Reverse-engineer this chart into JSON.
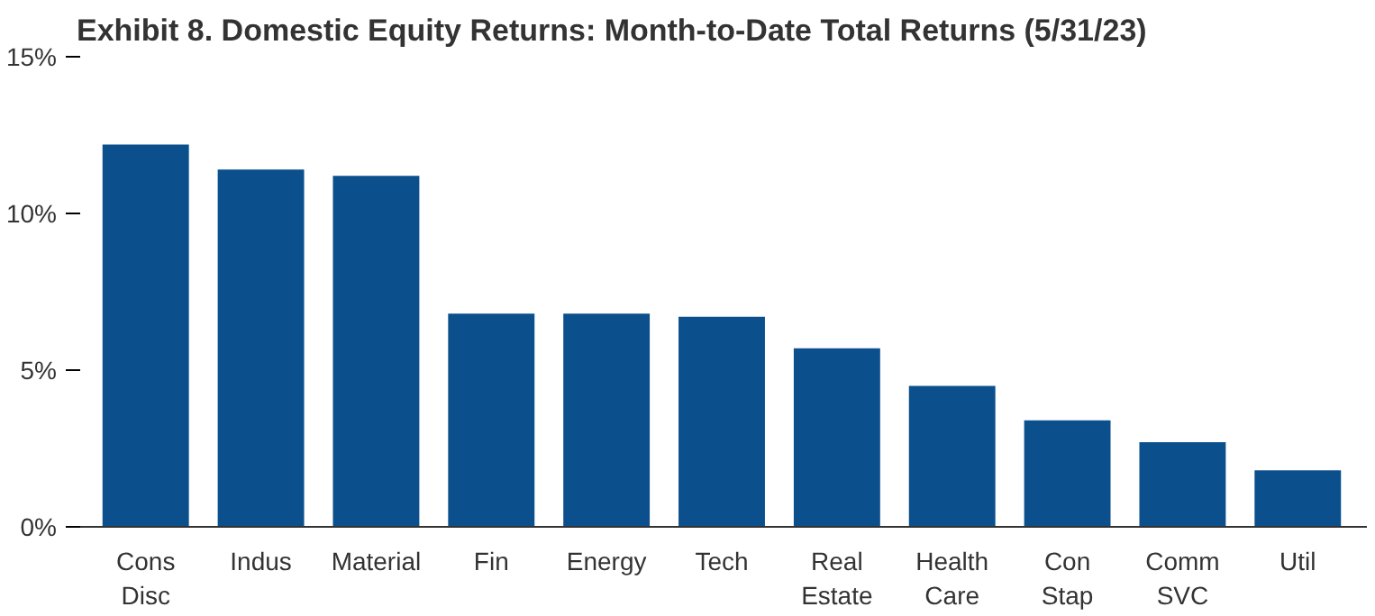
{
  "chart_data": {
    "type": "bar",
    "title": "Exhibit 8. Domestic Equity Returns: Month-to-Date Total Returns (5/31/23)",
    "categories": [
      "Cons\nDisc",
      "Indus",
      "Material",
      "Fin",
      "Energy",
      "Tech",
      "Real\nEstate",
      "Health\nCare",
      "Con\nStap",
      "Comm\nSVC",
      "Util"
    ],
    "values": [
      12.2,
      11.4,
      11.2,
      6.8,
      6.8,
      6.7,
      5.7,
      4.5,
      3.4,
      2.7,
      1.8
    ],
    "color": "#0b4f8c",
    "ylim": [
      0,
      15
    ],
    "yticks": [
      {
        "value": 0,
        "label": "0%"
      },
      {
        "value": 5,
        "label": "5%"
      },
      {
        "value": 10,
        "label": "10%"
      },
      {
        "value": 15,
        "label": "15%"
      }
    ],
    "grid": false
  }
}
